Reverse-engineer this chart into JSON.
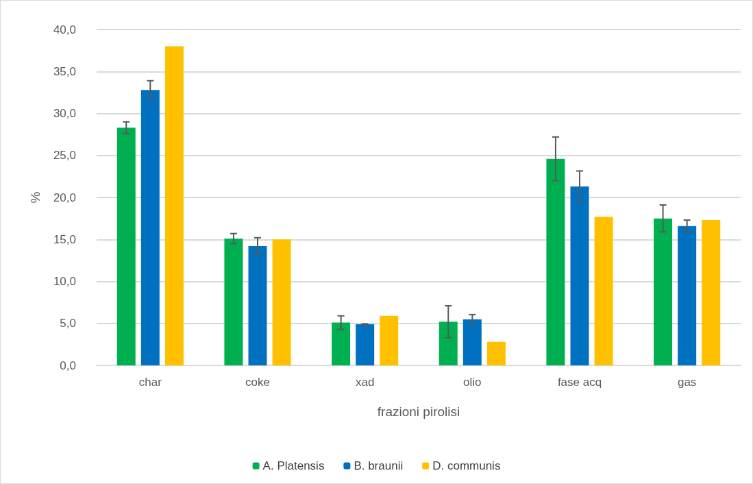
{
  "chart_data": {
    "type": "bar",
    "xlabel": "frazioni pirolisi",
    "ylabel": "%",
    "categories": [
      "char",
      "coke",
      "xad",
      "olio",
      "fase acq",
      "gas"
    ],
    "series": [
      {
        "name": "A. Platensis",
        "color": "#00b050",
        "values": [
          28.3,
          15.1,
          5.1,
          5.2,
          24.6,
          17.5
        ],
        "errors": [
          0.7,
          0.6,
          0.8,
          1.9,
          2.6,
          1.6
        ]
      },
      {
        "name": "B. braunii",
        "color": "#0070c0",
        "values": [
          32.8,
          14.2,
          4.9,
          5.5,
          21.3,
          16.6
        ],
        "errors": [
          1.1,
          1.0,
          0.05,
          0.55,
          1.85,
          0.7
        ]
      },
      {
        "name": "D. communis",
        "color": "#ffc000",
        "values": [
          38.0,
          15.0,
          5.9,
          2.8,
          17.7,
          17.3
        ]
      }
    ],
    "ylim": [
      0,
      40
    ],
    "yticks": [
      {
        "value": 0,
        "label": "0,0"
      },
      {
        "value": 5,
        "label": "5,0"
      },
      {
        "value": 10,
        "label": "10,0"
      },
      {
        "value": 15,
        "label": "15,0"
      },
      {
        "value": 20,
        "label": "20,0"
      },
      {
        "value": 25,
        "label": "25,0"
      },
      {
        "value": 30,
        "label": "30,0"
      },
      {
        "value": 35,
        "label": "35,0"
      },
      {
        "value": 40,
        "label": "40,0"
      }
    ],
    "grid": "y",
    "legend": "bottom"
  }
}
